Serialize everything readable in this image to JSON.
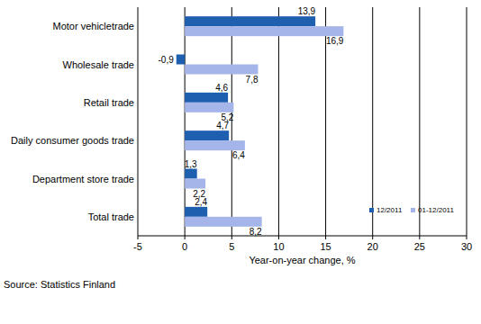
{
  "chart_data": {
    "type": "bar",
    "orientation": "horizontal",
    "categories": [
      "Motor vehicletrade",
      "Wholesale trade",
      "Retail trade",
      "Daily consumer goods trade",
      "Department store trade",
      "Total trade"
    ],
    "series": [
      {
        "name": "12/2011",
        "color": "#1f5faf",
        "values": [
          13.9,
          -0.9,
          4.6,
          4.7,
          1.3,
          2.4
        ],
        "value_labels": [
          "13,9",
          "-0,9",
          "4,6",
          "4,7",
          "1,3",
          "2,4"
        ]
      },
      {
        "name": "01-12/2011",
        "color": "#a5b5ea",
        "values": [
          16.9,
          7.8,
          5.2,
          6.4,
          2.2,
          8.2
        ],
        "value_labels": [
          "16,9",
          "7,8",
          "5,2",
          "6,4",
          "2,2",
          "8,2"
        ]
      }
    ],
    "xlabel": "Year-on-year change, %",
    "annotations": [
      "Source: Statistics Finland"
    ],
    "xlim": [
      -5,
      30
    ],
    "xticks": [
      -5,
      0,
      5,
      10,
      15,
      20,
      25,
      30
    ],
    "grid": true,
    "legend": "lower right",
    "data_labels": true
  }
}
